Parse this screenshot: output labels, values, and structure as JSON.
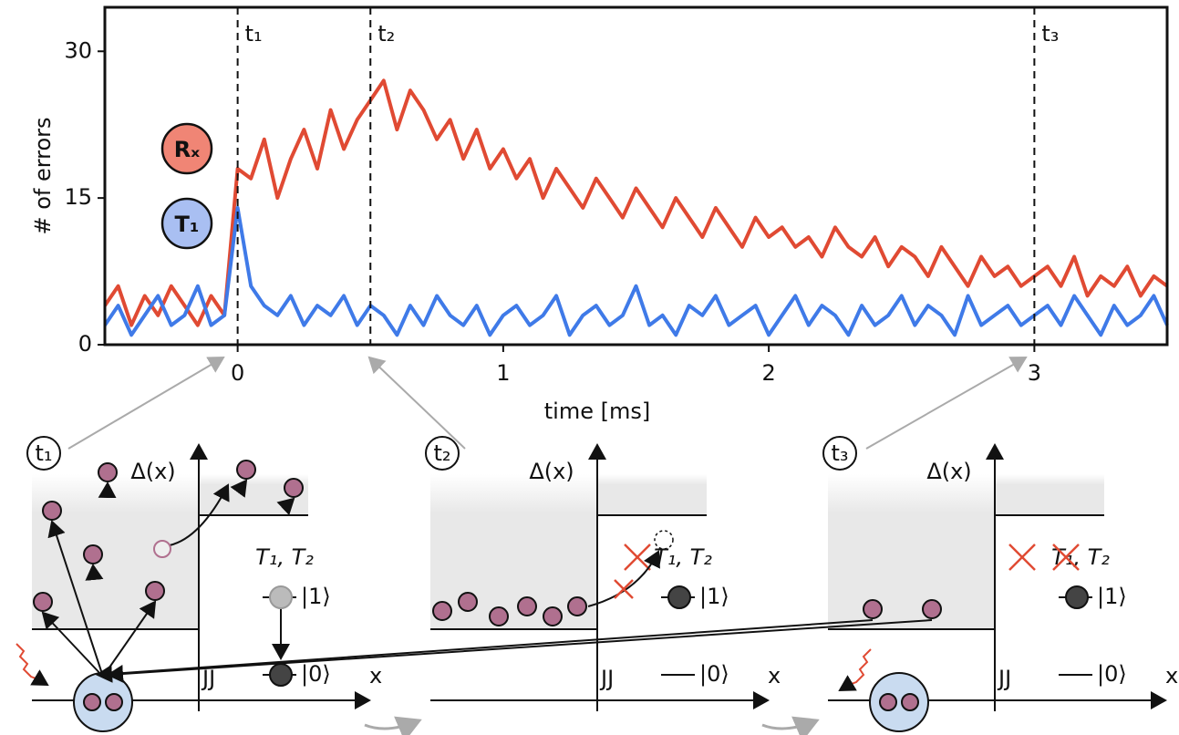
{
  "chart_data": {
    "type": "line",
    "xlabel": "time [ms]",
    "ylabel": "# of errors",
    "xlim": [
      -0.5,
      3.5
    ],
    "ylim": [
      0,
      34.5
    ],
    "xticks": [
      0,
      1,
      2,
      3
    ],
    "yticks": [
      0,
      15,
      30
    ],
    "x": [
      -0.5,
      -0.45,
      -0.4,
      -0.35,
      -0.3,
      -0.25,
      -0.2,
      -0.15,
      -0.1,
      -0.05,
      0,
      0.05,
      0.1,
      0.15,
      0.2,
      0.25,
      0.3,
      0.35,
      0.4,
      0.45,
      0.5,
      0.55,
      0.6,
      0.65,
      0.7,
      0.75,
      0.8,
      0.85,
      0.9,
      0.95,
      1,
      1.05,
      1.1,
      1.15,
      1.2,
      1.25,
      1.3,
      1.35,
      1.4,
      1.45,
      1.5,
      1.55,
      1.6,
      1.65,
      1.7,
      1.75,
      1.8,
      1.85,
      1.9,
      1.95,
      2,
      2.05,
      2.1,
      2.15,
      2.2,
      2.25,
      2.3,
      2.35,
      2.4,
      2.45,
      2.5,
      2.55,
      2.6,
      2.65,
      2.7,
      2.75,
      2.8,
      2.85,
      2.9,
      2.95,
      3,
      3.05,
      3.1,
      3.15,
      3.2,
      3.25,
      3.3,
      3.35,
      3.4,
      3.45,
      3.5
    ],
    "series": [
      {
        "name": "Rₓ",
        "color": "#e04a33",
        "legend_fill": "#f08575",
        "values": [
          4,
          6,
          2,
          5,
          3,
          6,
          4,
          2,
          5,
          3,
          18,
          17,
          21,
          15,
          19,
          22,
          18,
          24,
          20,
          23,
          25,
          27,
          22,
          26,
          24,
          21,
          23,
          19,
          22,
          18,
          20,
          17,
          19,
          15,
          18,
          16,
          14,
          17,
          15,
          13,
          16,
          14,
          12,
          15,
          13,
          11,
          14,
          12,
          10,
          13,
          11,
          12,
          10,
          11,
          9,
          12,
          10,
          9,
          11,
          8,
          10,
          9,
          7,
          10,
          8,
          6,
          9,
          7,
          8,
          6,
          7,
          8,
          6,
          9,
          5,
          7,
          6,
          8,
          5,
          7,
          6
        ]
      },
      {
        "name": "T₁",
        "color": "#3f7ae8",
        "legend_fill": "#a9bff2",
        "values": [
          2,
          4,
          1,
          3,
          5,
          2,
          3,
          6,
          2,
          3,
          14,
          6,
          4,
          3,
          5,
          2,
          4,
          3,
          5,
          2,
          4,
          3,
          1,
          4,
          2,
          5,
          3,
          2,
          4,
          1,
          3,
          4,
          2,
          3,
          5,
          1,
          3,
          4,
          2,
          3,
          6,
          2,
          3,
          1,
          4,
          3,
          5,
          2,
          3,
          4,
          1,
          3,
          5,
          2,
          4,
          3,
          1,
          4,
          2,
          3,
          5,
          2,
          4,
          3,
          1,
          5,
          2,
          3,
          4,
          2,
          3,
          4,
          2,
          5,
          3,
          1,
          4,
          2,
          3,
          5,
          2
        ]
      }
    ],
    "vlines": [
      {
        "x": 0,
        "label": "t₁"
      },
      {
        "x": 0.5,
        "label": "t₂"
      },
      {
        "x": 3,
        "label": "t₃"
      }
    ]
  },
  "diagrams": [
    {
      "label": "t₁",
      "gap": "Δ(x)",
      "times": "T₁, T₂",
      "state1": "|1⟩",
      "state0": "|0⟩",
      "junction": "JJ",
      "axis": "x"
    },
    {
      "label": "t₂",
      "gap": "Δ(x)",
      "times": "T₁, T₂",
      "state1": "|1⟩",
      "state0": "|0⟩",
      "junction": "JJ",
      "axis": "x"
    },
    {
      "label": "t₃",
      "gap": "Δ(x)",
      "times": "T₁, T₂",
      "state1": "|1⟩",
      "state0": "|0⟩",
      "junction": "JJ",
      "axis": "x"
    }
  ]
}
